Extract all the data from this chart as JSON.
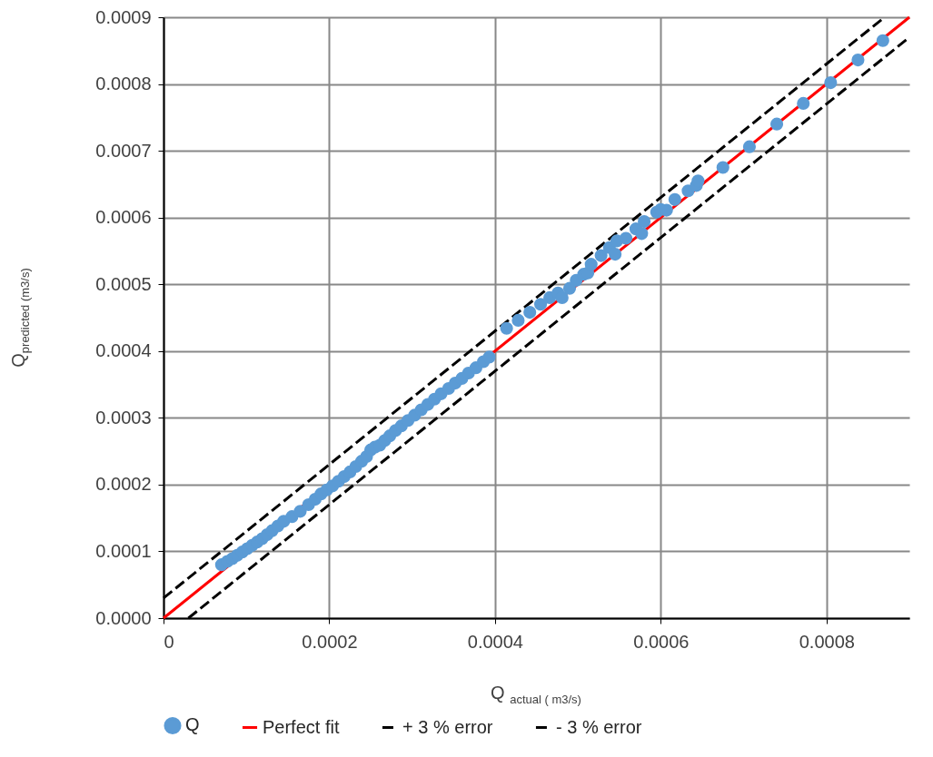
{
  "chart_data": {
    "type": "scatter",
    "xlabel": "Q $_{actual ( m3/s)}$",
    "ylabel": "Q$_{predicted (m3/s)}$",
    "xlim": [
      0,
      0.0009
    ],
    "ylim": [
      0,
      0.0009
    ],
    "xticks": [
      0,
      0.0002,
      0.0004,
      0.0006,
      0.0008
    ],
    "yticks": [
      {
        "value": 0,
        "label": "0.0000"
      },
      0.0001,
      0.0002,
      0.0003,
      0.0004,
      0.0005,
      0.0006,
      0.0007,
      0.0008,
      0.0009
    ],
    "grid": true,
    "legend": "bottom",
    "series": [
      {
        "name": "Q",
        "marker": "circle",
        "color": "#5b9bd5",
        "x": [
          7e-05,
          7.7e-05,
          8.3e-05,
          8.9e-05,
          9.5e-05,
          0.000101,
          0.000107,
          0.000113,
          0.000119,
          0.000125,
          0.000131,
          0.000138,
          0.000145,
          0.000155,
          0.000165,
          0.000175,
          0.000183,
          0.00019,
          0.000197,
          0.000204,
          0.000211,
          0.000218,
          0.000225,
          0.000232,
          0.000239,
          0.000245,
          0.00025,
          0.000255,
          0.000261,
          0.000267,
          0.000273,
          0.00028,
          0.000287,
          0.000295,
          0.000303,
          0.000311,
          0.000319,
          0.000327,
          0.000335,
          0.000344,
          0.000352,
          0.00036,
          0.000368,
          0.000377,
          0.000386,
          0.000393,
          0.000414,
          0.000428,
          0.000442,
          0.000455,
          0.000466,
          0.000476,
          0.000481,
          0.00049,
          0.000498,
          0.000507,
          0.000512,
          0.000516,
          0.000528,
          0.000538,
          0.000545,
          0.000547,
          0.000558,
          0.00057,
          0.000577,
          0.00058,
          0.000595,
          0.0006,
          0.000607,
          0.000617,
          0.000633,
          0.000643,
          0.000645,
          0.000675,
          0.000707,
          0.00074,
          0.000772,
          0.000805,
          0.000838,
          0.000868
        ],
        "values": [
          8e-05,
          8.5e-05,
          8.9e-05,
          9.4e-05,
          9.9e-05,
          0.000104,
          0.000109,
          0.000114,
          0.000119,
          0.000125,
          0.000131,
          0.000138,
          0.000145,
          0.000152,
          0.00016,
          0.00017,
          0.000178,
          0.000186,
          0.000192,
          0.000198,
          0.000205,
          0.000212,
          0.000219,
          0.000227,
          0.000235,
          0.000242,
          0.000252,
          0.000256,
          0.000259,
          0.000266,
          0.000273,
          0.000281,
          0.000288,
          0.000296,
          0.000304,
          0.000312,
          0.00032,
          0.000328,
          0.000336,
          0.000344,
          0.000352,
          0.000359,
          0.000367,
          0.000375,
          0.000384,
          0.000391,
          0.000434,
          0.000446,
          0.000458,
          0.00047,
          0.00048,
          0.000487,
          0.00048,
          0.000494,
          0.000506,
          0.000515,
          0.000517,
          0.00053,
          0.000543,
          0.000555,
          0.000545,
          0.000565,
          0.000569,
          0.000583,
          0.000576,
          0.000594,
          0.000608,
          0.000612,
          0.000611,
          0.000627,
          0.00064,
          0.000648,
          0.000655,
          0.000675,
          0.000706,
          0.00074,
          0.000771,
          0.000802,
          0.000836,
          0.000865
        ]
      },
      {
        "name": "Perfect fit",
        "type": "line",
        "line_style": "solid",
        "color": "#ff0000",
        "x": [
          0,
          0.0009
        ],
        "values": [
          0,
          0.0009
        ]
      },
      {
        "name": "+ 3 % error",
        "type": "line",
        "line_style": "dashed",
        "color": "#000000",
        "x": [
          0,
          0.00087
        ],
        "values": [
          3e-05,
          0.0009
        ]
      },
      {
        "name": "- 3 % error",
        "type": "line",
        "line_style": "dashed",
        "color": "#000000",
        "x": [
          3e-05,
          0.0009
        ],
        "values": [
          0,
          0.00087
        ]
      }
    ]
  }
}
